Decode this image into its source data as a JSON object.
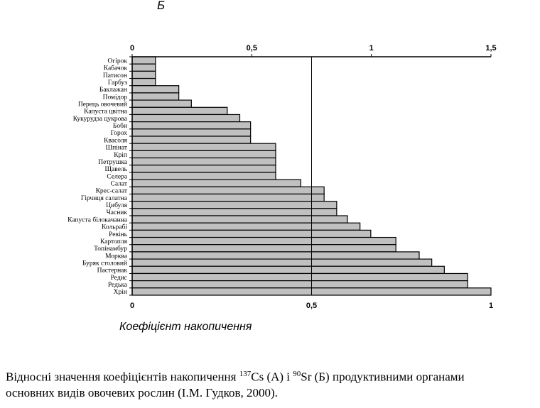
{
  "panel_label": "Б",
  "caption": {
    "line1_before": "Відносні значення коефіцієнтів накопичення ",
    "sup1": "137",
    "line1_mid": "Cs (А) і ",
    "sup2": "90",
    "line1_after": "Sr (Б) продуктивними органами",
    "line2": "основних видів овочевих рослин (І.М. Гудков, 2000)."
  },
  "chart_data": {
    "type": "bar",
    "orientation": "horizontal",
    "xlabel": "Коефіцієнт накопичення",
    "top_axis": {
      "ticks": [
        "0",
        "0,5",
        "1",
        "1,5"
      ],
      "values": [
        0,
        0.5,
        1,
        1.5
      ],
      "range": [
        0,
        1.5
      ]
    },
    "bottom_axis": {
      "ticks": [
        "0",
        "0,5",
        "1"
      ],
      "values": [
        0,
        0.5,
        1
      ],
      "range": [
        0,
        1
      ]
    },
    "reference_line_bottom_value": 0.5,
    "bar_color": "#c0c0c0",
    "categories": [
      "Огірок",
      "Кабачок",
      "Патисон",
      "Гарбуз",
      "Баклажан",
      "Помідор",
      "Перець овочевий",
      "Капуста цвітна",
      "Кукурудза цукрова",
      "Боби",
      "Горох",
      "Квасоля",
      "Шпінат",
      "Кріп",
      "Петрушка",
      "Щавель",
      "Селера",
      "Салат",
      "Крес-салат",
      "Гірчиця салатна",
      "Цибуля",
      "Часник",
      "Капуста білокачанна",
      "Кольрабі",
      "Ревінь",
      "Картопля",
      "Топінамбур",
      "Морква",
      "Буряк столовий",
      "Пастернак",
      "Редис",
      "Редька",
      "Хрін"
    ],
    "values": [
      0.065,
      0.065,
      0.065,
      0.065,
      0.13,
      0.13,
      0.165,
      0.265,
      0.3,
      0.33,
      0.33,
      0.33,
      0.4,
      0.4,
      0.4,
      0.4,
      0.4,
      0.47,
      0.535,
      0.535,
      0.57,
      0.57,
      0.6,
      0.635,
      0.665,
      0.735,
      0.735,
      0.8,
      0.835,
      0.87,
      0.935,
      0.935,
      1.0
    ]
  }
}
